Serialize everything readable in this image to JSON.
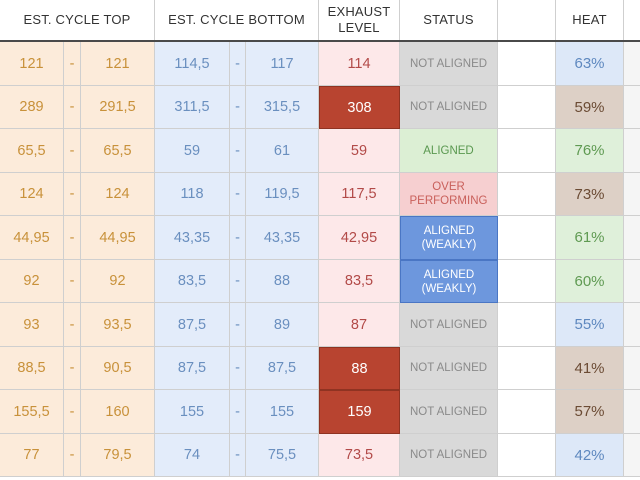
{
  "headers": {
    "est_cycle_top": "EST. CYCLE TOP",
    "est_cycle_bottom": "EST. CYCLE BOTTOM",
    "exhaust_level": "EXHAUST LEVEL",
    "status": "STATUS",
    "heat": "HEAT"
  },
  "colors": {
    "exhaust_highlight": "#b84430",
    "status_not_aligned": "#d9d9d9",
    "status_aligned": "#dcefd4",
    "status_over_performing": "#f6cfd0",
    "status_aligned_weakly": "#6d97dd",
    "heat_blue": "#dde8f8",
    "heat_green": "#dff0da",
    "heat_brown": "#ddd0c6"
  },
  "rows": [
    {
      "top_low": "121",
      "top_sep": "-",
      "top_high": "121",
      "bot_low": "114,5",
      "bot_sep": "-",
      "bot_high": "117",
      "exhaust": "114",
      "exhaust_highlight": false,
      "status": "NOT ALIGNED",
      "status_kind": "na",
      "heat": "63%",
      "heat_color": "blue"
    },
    {
      "top_low": "289",
      "top_sep": "-",
      "top_high": "291,5",
      "bot_low": "311,5",
      "bot_sep": "-",
      "bot_high": "315,5",
      "exhaust": "308",
      "exhaust_highlight": true,
      "status": "NOT ALIGNED",
      "status_kind": "na",
      "heat": "59%",
      "heat_color": "brown"
    },
    {
      "top_low": "65,5",
      "top_sep": "-",
      "top_high": "65,5",
      "bot_low": "59",
      "bot_sep": "-",
      "bot_high": "61",
      "exhaust": "59",
      "exhaust_highlight": false,
      "status": "ALIGNED",
      "status_kind": "al",
      "heat": "76%",
      "heat_color": "green"
    },
    {
      "top_low": "124",
      "top_sep": "-",
      "top_high": "124",
      "bot_low": "118",
      "bot_sep": "-",
      "bot_high": "119,5",
      "exhaust": "117,5",
      "exhaust_highlight": false,
      "status": "OVER PERFORMING",
      "status_kind": "ov",
      "heat": "73%",
      "heat_color": "brown"
    },
    {
      "top_low": "44,95",
      "top_sep": "-",
      "top_high": "44,95",
      "bot_low": "43,35",
      "bot_sep": "-",
      "bot_high": "43,35",
      "exhaust": "42,95",
      "exhaust_highlight": false,
      "status": "ALIGNED (WEAKLY)",
      "status_kind": "wk",
      "heat": "61%",
      "heat_color": "green"
    },
    {
      "top_low": "92",
      "top_sep": "-",
      "top_high": "92",
      "bot_low": "83,5",
      "bot_sep": "-",
      "bot_high": "88",
      "exhaust": "83,5",
      "exhaust_highlight": false,
      "status": "ALIGNED (WEAKLY)",
      "status_kind": "wk",
      "heat": "60%",
      "heat_color": "green"
    },
    {
      "top_low": "93",
      "top_sep": "-",
      "top_high": "93,5",
      "bot_low": "87,5",
      "bot_sep": "-",
      "bot_high": "89",
      "exhaust": "87",
      "exhaust_highlight": false,
      "status": "NOT ALIGNED",
      "status_kind": "na",
      "heat": "55%",
      "heat_color": "blue"
    },
    {
      "top_low": "88,5",
      "top_sep": "-",
      "top_high": "90,5",
      "bot_low": "87,5",
      "bot_sep": "-",
      "bot_high": "87,5",
      "exhaust": "88",
      "exhaust_highlight": true,
      "status": "NOT ALIGNED",
      "status_kind": "na",
      "heat": "41%",
      "heat_color": "brown"
    },
    {
      "top_low": "155,5",
      "top_sep": "-",
      "top_high": "160",
      "bot_low": "155",
      "bot_sep": "-",
      "bot_high": "155",
      "exhaust": "159",
      "exhaust_highlight": true,
      "status": "NOT ALIGNED",
      "status_kind": "na",
      "heat": "57%",
      "heat_color": "brown"
    },
    {
      "top_low": "77",
      "top_sep": "-",
      "top_high": "79,5",
      "bot_low": "74",
      "bot_sep": "-",
      "bot_high": "75,5",
      "exhaust": "73,5",
      "exhaust_highlight": false,
      "status": "NOT ALIGNED",
      "status_kind": "na",
      "heat": "42%",
      "heat_color": "blue"
    }
  ]
}
